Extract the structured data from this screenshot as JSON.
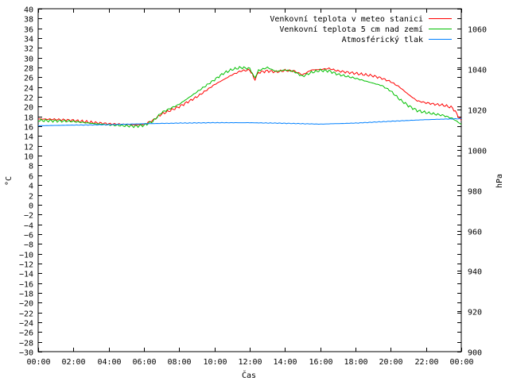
{
  "chart_data": {
    "type": "line",
    "xlabel": "Čas",
    "ylabel": "°C",
    "y2label": "hPa",
    "x_ticks": [
      "00:00",
      "02:00",
      "04:00",
      "06:00",
      "08:00",
      "10:00",
      "12:00",
      "14:00",
      "16:00",
      "18:00",
      "20:00",
      "22:00",
      "00:00"
    ],
    "xlim_hours": [
      0,
      24
    ],
    "ylim": [
      -30,
      40
    ],
    "y_step": 2,
    "y2lim": [
      900,
      1070
    ],
    "y2_step": 20,
    "grid": false,
    "legend_position": "top-right",
    "series": [
      {
        "name": "Venkovní teplota v meteo stanici",
        "axis": "y",
        "color": "#ff0000",
        "x": [
          0,
          1,
          2,
          3,
          4,
          5,
          5.5,
          6,
          6.5,
          7,
          8,
          9,
          10,
          10.5,
          11,
          11.5,
          12,
          12.3,
          12.5,
          13,
          13.5,
          14,
          14.5,
          15,
          15.5,
          16,
          16.5,
          17,
          18,
          19,
          19.5,
          20,
          20.5,
          21,
          21.5,
          22,
          22.5,
          23,
          23.5,
          24
        ],
        "values": [
          17.5,
          17.4,
          17.2,
          16.8,
          16.5,
          16.4,
          16.3,
          16.4,
          17.2,
          18.5,
          20,
          22,
          24.5,
          25.5,
          26.5,
          27.3,
          27.5,
          25.5,
          27,
          27.3,
          27.1,
          27.4,
          27.3,
          26.5,
          27.5,
          27.6,
          27.8,
          27.3,
          26.8,
          26.3,
          25.8,
          25.1,
          24,
          22.5,
          21.2,
          20.8,
          20.5,
          20.3,
          19.8,
          17.2
        ]
      },
      {
        "name": "Venkovní teplota 5 cm nad zemí",
        "axis": "y",
        "color": "#00c000",
        "x": [
          0,
          1,
          2,
          3,
          4,
          5,
          5.5,
          6,
          6.5,
          7,
          8,
          9,
          10,
          10.5,
          11,
          11.5,
          12,
          12.3,
          12.5,
          13,
          13.5,
          14,
          14.5,
          15,
          15.5,
          16,
          16.5,
          17,
          18,
          19,
          19.5,
          20,
          20.5,
          21,
          21.5,
          22,
          22.5,
          23,
          23.5,
          24
        ],
        "values": [
          17.2,
          17.1,
          17,
          16.6,
          16.3,
          16.1,
          16,
          16.2,
          17,
          18.8,
          20.5,
          23,
          25.5,
          26.8,
          27.6,
          28,
          27.8,
          25.8,
          27.4,
          28,
          27.2,
          27.5,
          27.2,
          26.2,
          27,
          27.4,
          27.3,
          26.6,
          25.8,
          24.8,
          24.3,
          23.2,
          21.5,
          20.2,
          19.2,
          18.8,
          18.5,
          18.2,
          17.6,
          16.4
        ]
      },
      {
        "name": "Atmosférický tlak",
        "axis": "y2",
        "color": "#0080ff",
        "x": [
          0,
          2,
          4,
          6,
          8,
          10,
          12,
          14,
          16,
          18,
          20,
          22,
          24
        ],
        "values": [
          1012,
          1012.3,
          1012.5,
          1013,
          1013.3,
          1013.5,
          1013.5,
          1013.2,
          1012.8,
          1013.3,
          1014.2,
          1015,
          1015.5
        ]
      }
    ]
  }
}
